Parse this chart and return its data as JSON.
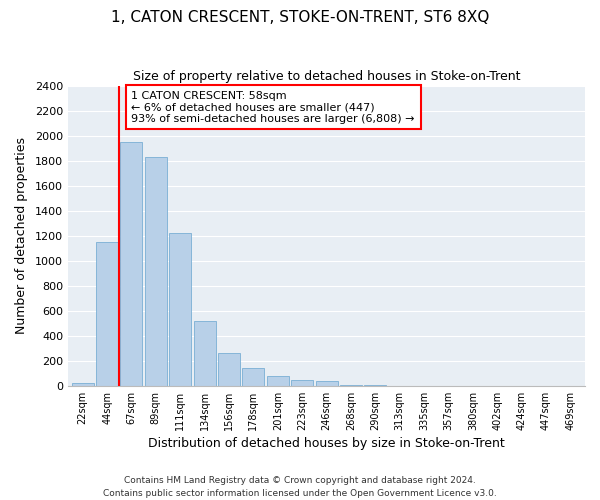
{
  "title": "1, CATON CRESCENT, STOKE-ON-TRENT, ST6 8XQ",
  "subtitle": "Size of property relative to detached houses in Stoke-on-Trent",
  "xlabel": "Distribution of detached houses by size in Stoke-on-Trent",
  "ylabel": "Number of detached properties",
  "bin_labels": [
    "22sqm",
    "44sqm",
    "67sqm",
    "89sqm",
    "111sqm",
    "134sqm",
    "156sqm",
    "178sqm",
    "201sqm",
    "223sqm",
    "246sqm",
    "268sqm",
    "290sqm",
    "313sqm",
    "335sqm",
    "357sqm",
    "380sqm",
    "402sqm",
    "424sqm",
    "447sqm",
    "469sqm"
  ],
  "bar_heights": [
    25,
    1150,
    1950,
    1830,
    1220,
    520,
    265,
    140,
    75,
    50,
    40,
    5,
    10,
    2,
    2,
    1,
    1,
    1,
    0,
    0,
    0
  ],
  "bar_color": "#b8d0e8",
  "bar_edge_color": "#7aafd4",
  "vline_color": "red",
  "annotation_title": "1 CATON CRESCENT: 58sqm",
  "annotation_line1": "← 6% of detached houses are smaller (447)",
  "annotation_line2": "93% of semi-detached houses are larger (6,808) →",
  "annotation_box_color": "white",
  "annotation_box_edge": "red",
  "bg_color": "#e8eef4",
  "ylim": [
    0,
    2400
  ],
  "yticks": [
    0,
    200,
    400,
    600,
    800,
    1000,
    1200,
    1400,
    1600,
    1800,
    2000,
    2200,
    2400
  ],
  "footer1": "Contains HM Land Registry data © Crown copyright and database right 2024.",
  "footer2": "Contains public sector information licensed under the Open Government Licence v3.0."
}
